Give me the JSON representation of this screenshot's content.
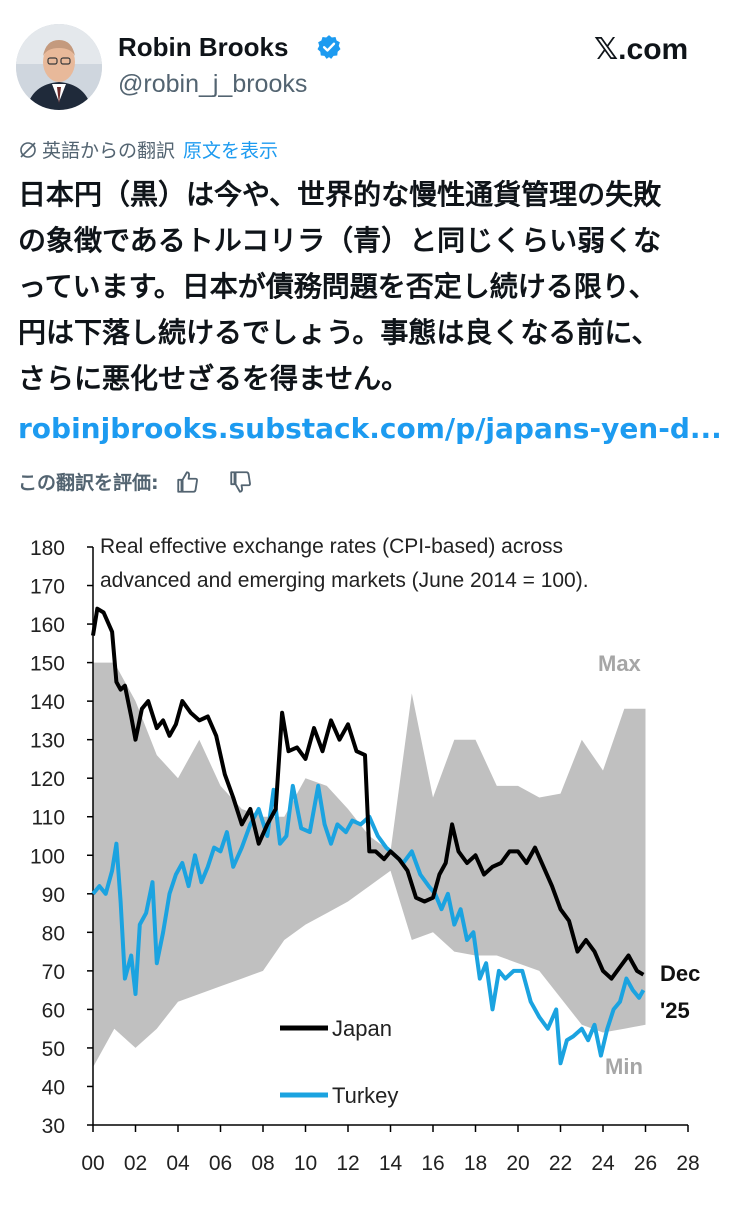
{
  "author": {
    "name": "Robin Brooks",
    "handle": "@robin_j_brooks",
    "verified": true
  },
  "platform": {
    "logo_text": "𝕏.com"
  },
  "translation": {
    "label": "英語からの翻訳",
    "show_original": "原文を表示",
    "rate_label": "この翻訳を評価:"
  },
  "tweet": {
    "lines": [
      "日本円（黒）は今や、世界的な慢性通貨管理の失敗",
      "の象徴であるトルコリラ（青）と同じくらい弱くな",
      "っています。日本が債務問題を否定し続ける限り、",
      "円は下落し続けるでしょう。事態は良くなる前に、",
      "さらに悪化せざるを得ません。"
    ],
    "link": "robinjbrooks.substack.com/p/japans-yen-d..."
  },
  "icons": {
    "verified": "verified-badge-icon",
    "globe": "translate-globe-icon",
    "thumbs_up": "thumbs-up-icon",
    "thumbs_down": "thumbs-down-icon"
  },
  "colors": {
    "japan": "#000000",
    "turkey": "#1ba3e0",
    "band": "#c0c0c0",
    "link": "#1d9bf0"
  },
  "chart_data": {
    "type": "line",
    "title": "Real effective exchange rates (CPI-based) across advanced and emerging markets (June 2014 = 100).",
    "title_lines": [
      "Real effective exchange rates (CPI-based) across",
      "advanced and emerging markets (June 2014 = 100)."
    ],
    "xlabel": "",
    "ylabel": "",
    "xlim": [
      2000,
      2028
    ],
    "ylim": [
      30,
      180
    ],
    "x_ticks": [
      "00",
      "02",
      "04",
      "06",
      "08",
      "10",
      "12",
      "14",
      "16",
      "18",
      "20",
      "22",
      "24",
      "26",
      "28"
    ],
    "y_ticks": [
      30,
      40,
      50,
      60,
      70,
      80,
      90,
      100,
      110,
      120,
      130,
      140,
      150,
      160,
      170,
      180
    ],
    "annotations": {
      "max": "Max",
      "min": "Min",
      "end_line1": "Dec",
      "end_line2": "'25"
    },
    "series": [
      {
        "name": "Japan",
        "x": [
          2000.0,
          2000.2,
          2000.5,
          2000.9,
          2001.1,
          2001.3,
          2001.5,
          2001.8,
          2002.0,
          2002.3,
          2002.6,
          2003.0,
          2003.3,
          2003.6,
          2003.9,
          2004.2,
          2004.6,
          2005.0,
          2005.4,
          2005.8,
          2006.2,
          2006.6,
          2007.0,
          2007.4,
          2007.8,
          2008.2,
          2008.6,
          2008.9,
          2009.2,
          2009.6,
          2010.0,
          2010.4,
          2010.8,
          2011.2,
          2011.6,
          2012.0,
          2012.4,
          2012.8,
          2013.0,
          2013.3,
          2013.7,
          2014.0,
          2014.4,
          2014.8,
          2015.2,
          2015.6,
          2016.0,
          2016.3,
          2016.6,
          2016.9,
          2017.2,
          2017.6,
          2018.0,
          2018.4,
          2018.8,
          2019.2,
          2019.6,
          2020.0,
          2020.4,
          2020.8,
          2021.2,
          2021.6,
          2022.0,
          2022.4,
          2022.8,
          2023.2,
          2023.6,
          2024.0,
          2024.4,
          2024.8,
          2025.2,
          2025.6,
          2025.9
        ],
        "values": [
          157,
          164,
          163,
          158,
          145,
          143,
          144,
          136,
          130,
          138,
          140,
          133,
          135,
          131,
          134,
          140,
          137,
          135,
          136,
          131,
          121,
          115,
          108,
          112,
          103,
          108,
          112,
          137,
          127,
          128,
          125,
          133,
          127,
          135,
          130,
          134,
          127,
          126,
          101,
          101,
          99,
          101,
          99,
          96,
          89,
          88,
          89,
          95,
          98,
          108,
          101,
          98,
          100,
          95,
          97,
          98,
          101,
          101,
          98,
          102,
          97,
          92,
          86,
          83,
          75,
          78,
          75,
          70,
          68,
          71,
          74,
          70,
          69
        ]
      },
      {
        "name": "Turkey",
        "x": [
          2000.0,
          2000.3,
          2000.6,
          2000.9,
          2001.1,
          2001.3,
          2001.5,
          2001.8,
          2002.0,
          2002.2,
          2002.5,
          2002.8,
          2003.0,
          2003.3,
          2003.6,
          2003.9,
          2004.2,
          2004.5,
          2004.8,
          2005.1,
          2005.4,
          2005.7,
          2006.0,
          2006.3,
          2006.6,
          2007.0,
          2007.4,
          2007.8,
          2008.2,
          2008.5,
          2008.8,
          2009.1,
          2009.4,
          2009.8,
          2010.2,
          2010.6,
          2010.9,
          2011.2,
          2011.5,
          2011.9,
          2012.2,
          2012.6,
          2013.0,
          2013.4,
          2013.8,
          2014.2,
          2014.6,
          2015.0,
          2015.4,
          2015.8,
          2016.1,
          2016.4,
          2016.7,
          2017.0,
          2017.3,
          2017.6,
          2017.9,
          2018.2,
          2018.5,
          2018.8,
          2019.1,
          2019.4,
          2019.8,
          2020.2,
          2020.6,
          2021.0,
          2021.4,
          2021.8,
          2022.0,
          2022.3,
          2022.6,
          2023.0,
          2023.3,
          2023.6,
          2023.9,
          2024.2,
          2024.5,
          2024.8,
          2025.1,
          2025.4,
          2025.7,
          2025.9
        ],
        "values": [
          90,
          92,
          90,
          96,
          103,
          88,
          68,
          74,
          64,
          82,
          85,
          93,
          72,
          80,
          90,
          95,
          98,
          92,
          100,
          93,
          97,
          102,
          101,
          106,
          97,
          102,
          108,
          112,
          105,
          117,
          103,
          105,
          118,
          107,
          106,
          118,
          108,
          103,
          108,
          106,
          109,
          108,
          110,
          105,
          102,
          100,
          98,
          101,
          95,
          92,
          90,
          86,
          90,
          82,
          86,
          78,
          80,
          68,
          72,
          60,
          70,
          68,
          70,
          70,
          62,
          58,
          55,
          60,
          46,
          52,
          53,
          55,
          52,
          56,
          48,
          55,
          60,
          62,
          68,
          65,
          63,
          65
        ]
      }
    ],
    "band": {
      "name": "Max / Min range",
      "x": [
        2000,
        2001,
        2002,
        2003,
        2004,
        2005,
        2006,
        2007,
        2008,
        2009,
        2010,
        2011,
        2012,
        2013,
        2014,
        2015,
        2016,
        2017,
        2018,
        2019,
        2020,
        2021,
        2022,
        2023,
        2024,
        2025,
        2026
      ],
      "max": [
        150,
        150,
        140,
        126,
        120,
        130,
        118,
        112,
        110,
        110,
        120,
        118,
        112,
        105,
        101,
        142,
        115,
        130,
        130,
        118,
        118,
        115,
        116,
        130,
        122,
        138,
        138
      ],
      "min": [
        45,
        55,
        50,
        55,
        62,
        64,
        66,
        68,
        70,
        78,
        82,
        85,
        88,
        92,
        96,
        78,
        80,
        75,
        74,
        74,
        72,
        70,
        63,
        56,
        54,
        55,
        56
      ]
    }
  }
}
